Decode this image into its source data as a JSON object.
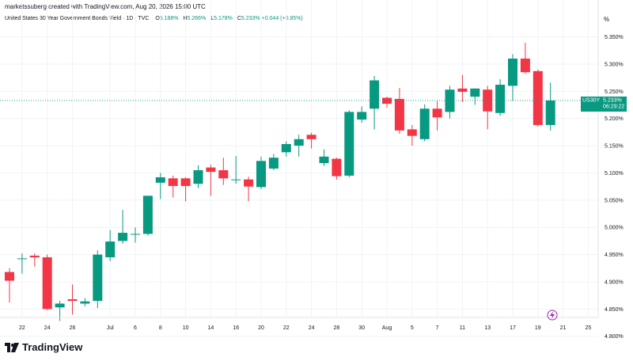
{
  "header": {
    "attribution": "marketssuberg created with TradingView.com, Aug 20, 2026 15:00 UTC"
  },
  "legend": {
    "title": "United States 30 Year Government Bonds Yield · 1D · TVC",
    "open_label": "O",
    "open_value": "5.188%",
    "high_label": "H",
    "high_value": "5.266%",
    "low_label": "L",
    "low_value": "5.178%",
    "close_label": "C",
    "close_value": "5.233%",
    "change": "+0.044 (+0.85%)"
  },
  "axis": {
    "unit_label": "%"
  },
  "price_tag": {
    "symbol": "US30Y",
    "price": "5.233%",
    "countdown": "06:29:22"
  },
  "footer": {
    "brand": "TradingView"
  },
  "colors": {
    "up": "#089981",
    "down": "#f23645",
    "grid": "#f0f3fa",
    "text": "#131722"
  },
  "icons": {
    "logo": "tradingview-logo-icon",
    "event": "lightning-icon"
  },
  "chart_data": {
    "type": "candlestick",
    "title": "United States 30 Year Government Bonds Yield",
    "ylim": [
      4.775,
      5.375
    ],
    "y_ticks": [
      "4.800%",
      "4.850%",
      "4.900%",
      "4.950%",
      "5.000%",
      "5.050%",
      "5.100%",
      "5.150%",
      "5.200%",
      "5.250%",
      "5.300%",
      "5.350%"
    ],
    "y_tick_values": [
      4.8,
      4.85,
      4.9,
      4.95,
      5.0,
      5.05,
      5.1,
      5.15,
      5.2,
      5.25,
      5.3,
      5.35
    ],
    "x_ticks": [
      {
        "label": "22",
        "i": 1
      },
      {
        "label": "24",
        "i": 3
      },
      {
        "label": "26",
        "i": 5
      },
      {
        "label": "Jul",
        "i": 8
      },
      {
        "label": "6",
        "i": 10
      },
      {
        "label": "8",
        "i": 12
      },
      {
        "label": "10",
        "i": 14
      },
      {
        "label": "14",
        "i": 16
      },
      {
        "label": "16",
        "i": 18
      },
      {
        "label": "20",
        "i": 20
      },
      {
        "label": "22",
        "i": 22
      },
      {
        "label": "24",
        "i": 24
      },
      {
        "label": "28",
        "i": 26
      },
      {
        "label": "30",
        "i": 28
      },
      {
        "label": "Aug",
        "i": 30
      },
      {
        "label": "5",
        "i": 32
      },
      {
        "label": "7",
        "i": 34
      },
      {
        "label": "11",
        "i": 36
      },
      {
        "label": "13",
        "i": 38
      },
      {
        "label": "17",
        "i": 40
      },
      {
        "label": "19",
        "i": 42
      },
      {
        "label": "21",
        "i": 44
      },
      {
        "label": "25",
        "i": 46
      }
    ],
    "candles": [
      {
        "o": 4.918,
        "h": 4.925,
        "l": 4.862,
        "c": 4.902
      },
      {
        "o": 4.943,
        "h": 4.952,
        "l": 4.915,
        "c": 4.943
      },
      {
        "o": 4.948,
        "h": 4.952,
        "l": 4.928,
        "c": 4.945
      },
      {
        "o": 4.945,
        "h": 4.95,
        "l": 4.848,
        "c": 4.85
      },
      {
        "o": 4.853,
        "h": 4.865,
        "l": 4.828,
        "c": 4.86
      },
      {
        "o": 4.868,
        "h": 4.895,
        "l": 4.84,
        "c": 4.865
      },
      {
        "o": 4.86,
        "h": 4.87,
        "l": 4.855,
        "c": 4.864
      },
      {
        "o": 4.865,
        "h": 4.958,
        "l": 4.852,
        "c": 4.95
      },
      {
        "o": 4.945,
        "h": 4.995,
        "l": 4.938,
        "c": 4.974
      },
      {
        "o": 4.975,
        "h": 5.032,
        "l": 4.97,
        "c": 4.99
      },
      {
        "o": 4.988,
        "h": 5.0,
        "l": 4.972,
        "c": 4.988
      },
      {
        "o": 4.988,
        "h": 5.058,
        "l": 4.985,
        "c": 5.058
      },
      {
        "o": 5.082,
        "h": 5.1,
        "l": 5.052,
        "c": 5.092
      },
      {
        "o": 5.09,
        "h": 5.095,
        "l": 5.055,
        "c": 5.076
      },
      {
        "o": 5.09,
        "h": 5.092,
        "l": 5.048,
        "c": 5.076
      },
      {
        "o": 5.08,
        "h": 5.114,
        "l": 5.072,
        "c": 5.105
      },
      {
        "o": 5.11,
        "h": 5.115,
        "l": 5.058,
        "c": 5.102
      },
      {
        "o": 5.105,
        "h": 5.128,
        "l": 5.078,
        "c": 5.09
      },
      {
        "o": 5.087,
        "h": 5.131,
        "l": 5.08,
        "c": 5.088
      },
      {
        "o": 5.088,
        "h": 5.093,
        "l": 5.048,
        "c": 5.075
      },
      {
        "o": 5.074,
        "h": 5.13,
        "l": 5.07,
        "c": 5.122
      },
      {
        "o": 5.108,
        "h": 5.135,
        "l": 5.105,
        "c": 5.128
      },
      {
        "o": 5.138,
        "h": 5.158,
        "l": 5.13,
        "c": 5.153
      },
      {
        "o": 5.15,
        "h": 5.17,
        "l": 5.13,
        "c": 5.162
      },
      {
        "o": 5.17,
        "h": 5.174,
        "l": 5.145,
        "c": 5.162
      },
      {
        "o": 5.118,
        "h": 5.143,
        "l": 5.113,
        "c": 5.13
      },
      {
        "o": 5.126,
        "h": 5.128,
        "l": 5.088,
        "c": 5.094
      },
      {
        "o": 5.095,
        "h": 5.215,
        "l": 5.092,
        "c": 5.212
      },
      {
        "o": 5.198,
        "h": 5.222,
        "l": 5.192,
        "c": 5.212
      },
      {
        "o": 5.218,
        "h": 5.278,
        "l": 5.18,
        "c": 5.27
      },
      {
        "o": 5.238,
        "h": 5.24,
        "l": 5.22,
        "c": 5.227
      },
      {
        "o": 5.236,
        "h": 5.256,
        "l": 5.172,
        "c": 5.178
      },
      {
        "o": 5.18,
        "h": 5.188,
        "l": 5.15,
        "c": 5.168
      },
      {
        "o": 5.162,
        "h": 5.226,
        "l": 5.158,
        "c": 5.218
      },
      {
        "o": 5.218,
        "h": 5.232,
        "l": 5.178,
        "c": 5.202
      },
      {
        "o": 5.212,
        "h": 5.26,
        "l": 5.2,
        "c": 5.253
      },
      {
        "o": 5.255,
        "h": 5.28,
        "l": 5.23,
        "c": 5.249
      },
      {
        "o": 5.24,
        "h": 5.255,
        "l": 5.225,
        "c": 5.255
      },
      {
        "o": 5.253,
        "h": 5.26,
        "l": 5.18,
        "c": 5.213
      },
      {
        "o": 5.21,
        "h": 5.272,
        "l": 5.205,
        "c": 5.262
      },
      {
        "o": 5.26,
        "h": 5.318,
        "l": 5.232,
        "c": 5.31
      },
      {
        "o": 5.31,
        "h": 5.339,
        "l": 5.282,
        "c": 5.285
      },
      {
        "o": 5.287,
        "h": 5.29,
        "l": 5.185,
        "c": 5.188
      },
      {
        "o": 5.188,
        "h": 5.266,
        "l": 5.178,
        "c": 5.233
      }
    ]
  }
}
